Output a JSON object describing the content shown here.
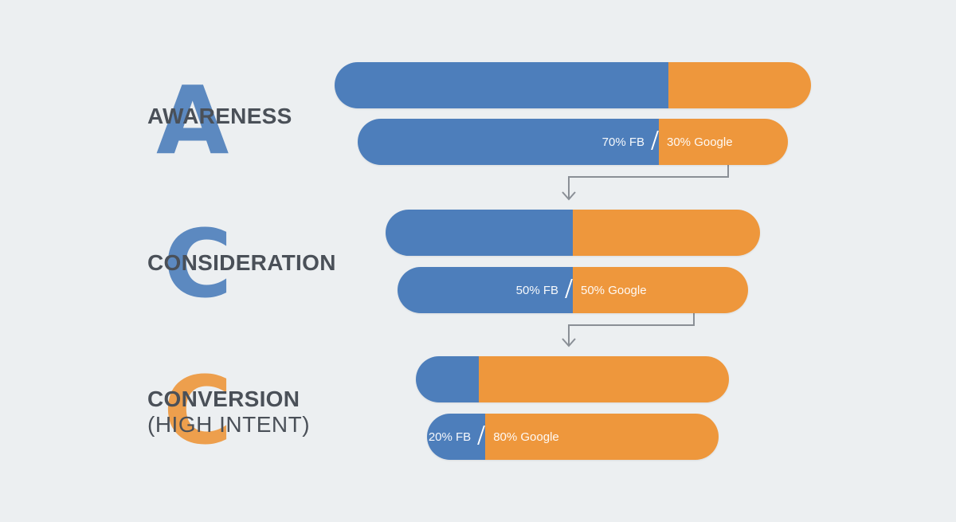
{
  "colors": {
    "fb": "#4d7ebb",
    "google": "#ee973c",
    "text": "#4a5058",
    "connector": "#8a8f96",
    "background": "#eceff1"
  },
  "stages": [
    {
      "letter": "A",
      "letter_color": "#4d7ebb",
      "label": "AWARENESS",
      "sublabel": "",
      "fb_share": 0.7,
      "google_share": 0.3,
      "fb_text": "70% FB",
      "google_text": "30% Google"
    },
    {
      "letter": "C",
      "letter_color": "#4d7ebb",
      "label": "CONSIDERATION",
      "sublabel": "",
      "fb_share": 0.5,
      "google_share": 0.5,
      "fb_text": "50% FB",
      "google_text": "50% Google"
    },
    {
      "letter": "C",
      "letter_color": "#ee973c",
      "label": "CONVERSION",
      "sublabel": "(HIGH INTENT)",
      "fb_share": 0.2,
      "google_share": 0.8,
      "fb_text": "20% FB",
      "google_text": "80% Google"
    }
  ]
}
